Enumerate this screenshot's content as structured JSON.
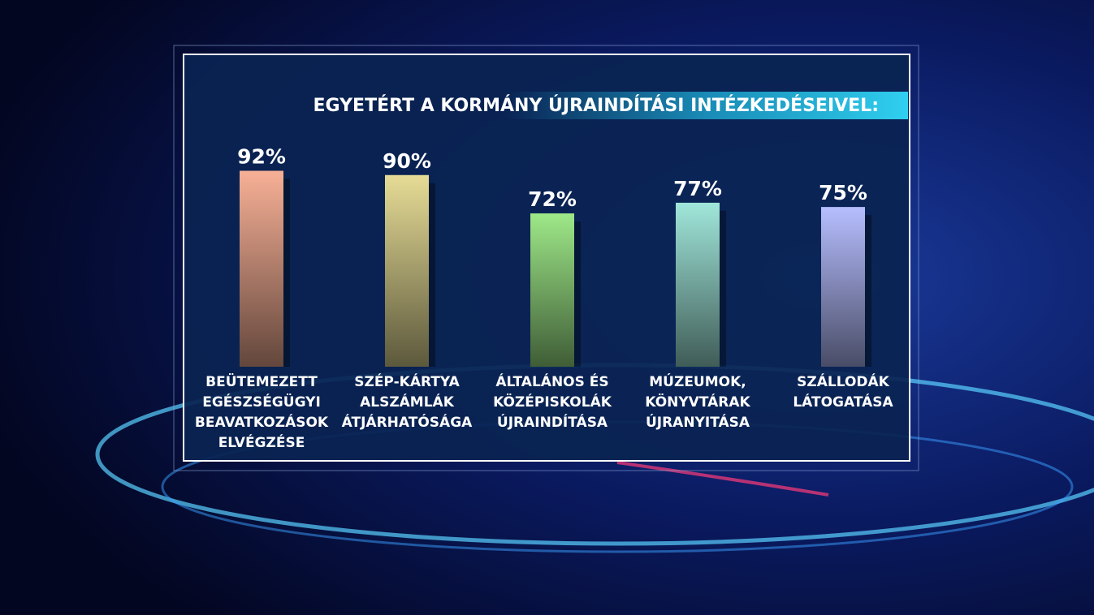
{
  "chart_data": {
    "type": "bar",
    "title": "EGYETÉRT A KORMÁNY ÚJRAINDÍTÁSI INTÉZKEDÉSEIVEL:",
    "categories": [
      "BEÜTEMEZETT\nEGÉSZSÉGÜGYI\nBEAVATKOZÁSOK\nELVÉGZÉSE",
      "SZÉP-KÁRTYA\nALSZÁMLÁK\nÁTJÁRHATÓSÁGA",
      "ÁLTALÁNOS ÉS\nKÖZÉPISKOLÁK\nÚJRAINDÍTÁSA",
      "MÚZEUMOK,\nKÖNYVTÁRAK\nÚJRANYITÁSA",
      "SZÁLLODÁK\nLÁTOGATÁSA"
    ],
    "values": [
      92,
      90,
      72,
      77,
      75
    ],
    "value_labels": [
      "92%",
      "90%",
      "72%",
      "77%",
      "75%"
    ],
    "colors": [
      "#f7b096",
      "#e6dc96",
      "#9ee888",
      "#a0e6da",
      "#b6beff"
    ]
  }
}
